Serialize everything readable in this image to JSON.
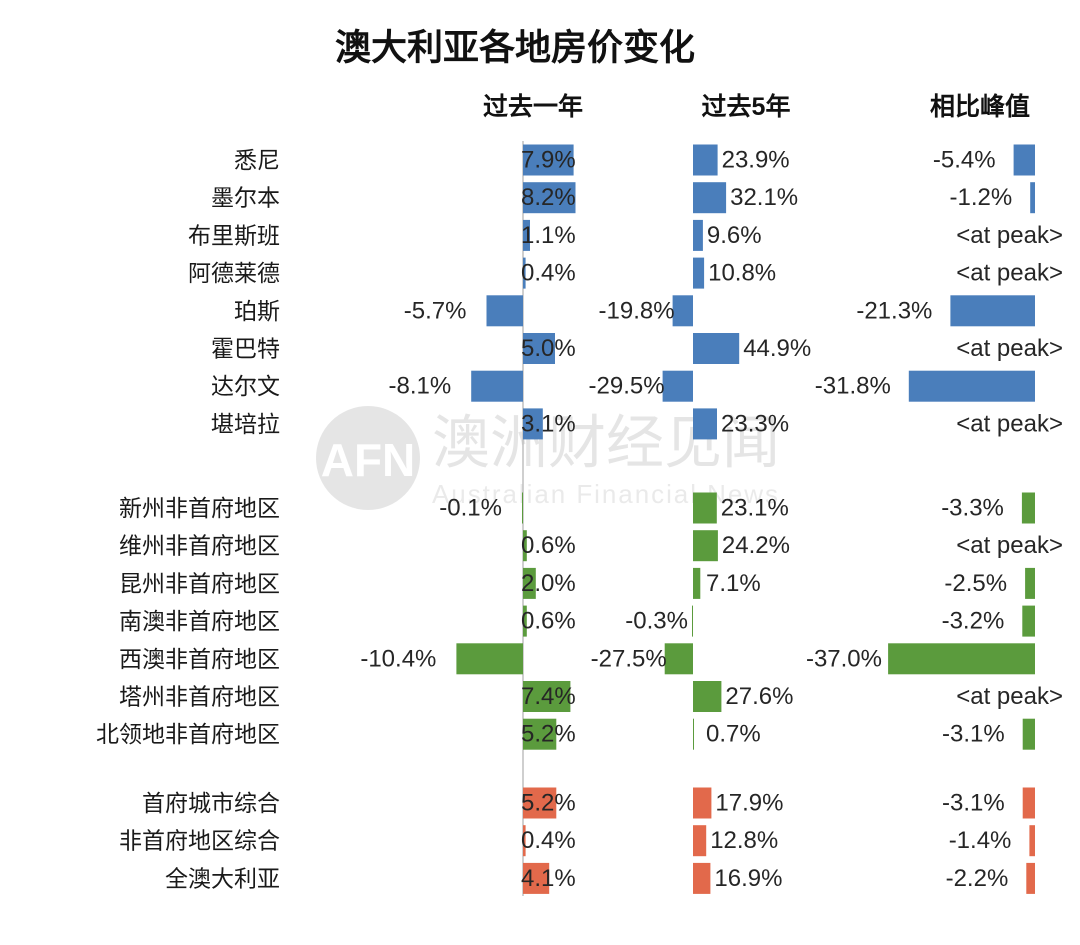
{
  "chart_data": {
    "type": "bar",
    "orientation": "horizontal",
    "title": "澳大利亚各地房价变化",
    "categories": [
      "悉尼",
      "墨尔本",
      "布里斯班",
      "阿德莱德",
      "珀斯",
      "霍巴特",
      "达尔文",
      "堪培拉",
      "新州非首府地区",
      "维州非首府地区",
      "昆州非首府地区",
      "南澳非首府地区",
      "西澳非首府地区",
      "塔州非首府地区",
      "北领地非首府地区",
      "首府城市综合",
      "非首府地区综合",
      "全澳大利亚"
    ],
    "series": [
      {
        "name": "过去一年",
        "values": [
          7.9,
          8.2,
          1.1,
          0.4,
          -5.7,
          5.0,
          -8.1,
          3.1,
          -0.1,
          0.6,
          2.0,
          0.6,
          -10.4,
          7.4,
          5.2,
          5.2,
          0.4,
          4.1
        ]
      },
      {
        "name": "过去5年",
        "values": [
          23.9,
          32.1,
          9.6,
          10.8,
          -19.8,
          44.9,
          -29.5,
          23.3,
          23.1,
          24.2,
          7.1,
          -0.3,
          -27.5,
          27.6,
          0.7,
          17.9,
          12.8,
          16.9
        ]
      },
      {
        "name": "相比峰值",
        "values": [
          -5.4,
          -1.2,
          null,
          null,
          -21.3,
          null,
          -31.8,
          null,
          -3.3,
          null,
          -2.5,
          -3.2,
          -37.0,
          null,
          -3.1,
          -3.1,
          -1.4,
          -2.2
        ]
      }
    ],
    "category_colors": [
      "#4A7EBB",
      "#4A7EBB",
      "#4A7EBB",
      "#4A7EBB",
      "#4A7EBB",
      "#4A7EBB",
      "#4A7EBB",
      "#4A7EBB",
      "#5B9B3D",
      "#5B9B3D",
      "#5B9B3D",
      "#5B9B3D",
      "#5B9B3D",
      "#5B9B3D",
      "#5B9B3D",
      "#E2694B",
      "#E2694B",
      "#E2694B"
    ],
    "unit": "%",
    "at_peak_label": "<at peak>",
    "grid": false,
    "legend": "none"
  },
  "watermark": {
    "logo": "AFN",
    "name": "澳洲财经见闻",
    "name_en": "Australian Financial News"
  }
}
